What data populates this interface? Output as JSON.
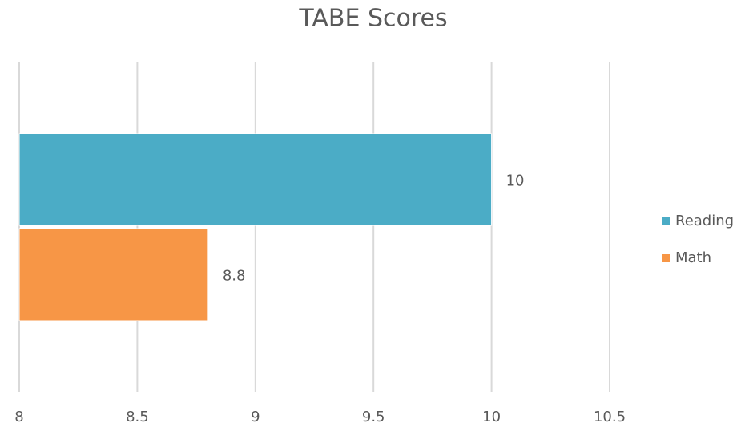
{
  "chart_data": {
    "type": "bar",
    "orientation": "horizontal",
    "title": "TABE Scores",
    "categories": [
      null
    ],
    "series": [
      {
        "name": "Reading",
        "color": "#4bacc6",
        "values": [
          10
        ]
      },
      {
        "name": "Math",
        "color": "#f79646",
        "values": [
          8.8
        ]
      }
    ],
    "xlim": [
      8,
      10.5
    ],
    "xticks": [
      8,
      8.5,
      9,
      9.5,
      10,
      10.5
    ],
    "grid": true,
    "legend": "right"
  }
}
